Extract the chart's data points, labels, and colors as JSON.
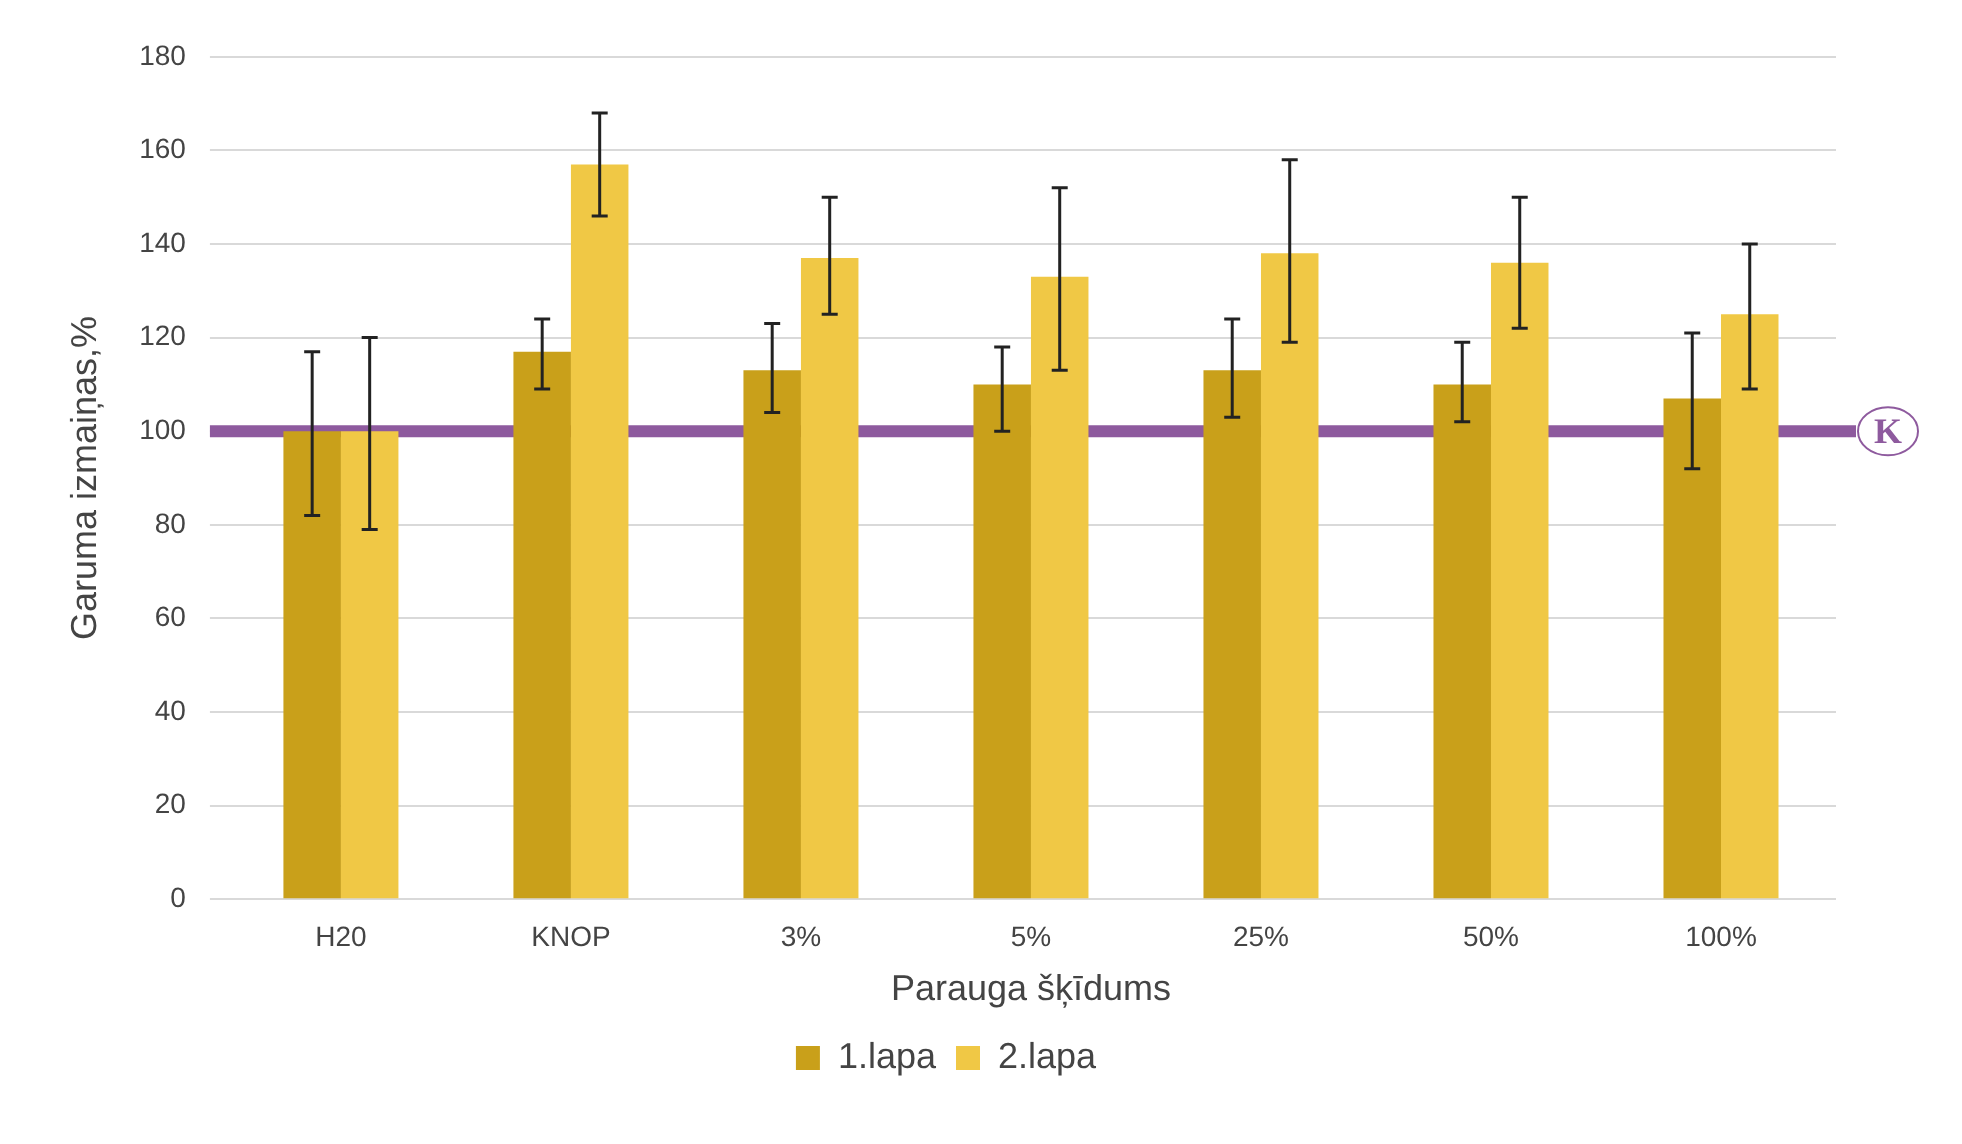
{
  "chart_data": {
    "type": "bar",
    "xlabel": "Parauga šķīdums",
    "ylabel": "Garuma izmaiņas,%",
    "categories": [
      "H20",
      "KNOP",
      "3%",
      "5%",
      "25%",
      "50%",
      "100%"
    ],
    "series": [
      {
        "name": "1.lapa",
        "color": "#c9a01a",
        "values": [
          100,
          117,
          113,
          110,
          113,
          110,
          107
        ],
        "errors": [
          [
            82,
            117
          ],
          [
            109,
            124
          ],
          [
            104,
            123
          ],
          [
            100,
            118
          ],
          [
            103,
            124
          ],
          [
            102,
            119
          ],
          [
            92,
            121
          ]
        ]
      },
      {
        "name": "2.lapa",
        "color": "#f0c845",
        "values": [
          100,
          157,
          137,
          133,
          138,
          136,
          125
        ],
        "errors": [
          [
            79,
            120
          ],
          [
            146,
            168
          ],
          [
            125,
            150
          ],
          [
            113,
            152
          ],
          [
            119,
            158
          ],
          [
            122,
            150
          ],
          [
            109,
            140
          ]
        ]
      }
    ],
    "ylim": [
      0,
      180
    ],
    "yticks": [
      0,
      20,
      40,
      60,
      80,
      100,
      120,
      140,
      160,
      180
    ],
    "grid": "y",
    "legend": "bottom",
    "ref_lines": [
      {
        "axis": "y",
        "value": 100,
        "label": "K",
        "color": "#8e5a9e"
      }
    ]
  }
}
